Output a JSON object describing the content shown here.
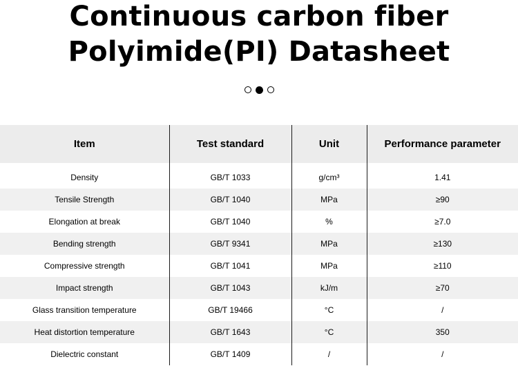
{
  "title": {
    "line1": "Continuous carbon fiber",
    "line2": "Polyimide(PI) Datasheet"
  },
  "pager": {
    "count": 3,
    "active_index": 1
  },
  "table": {
    "headers": [
      "Item",
      "Test standard",
      "Unit",
      "Performance parameter"
    ],
    "rows": [
      [
        "Density",
        "GB/T 1033",
        "g/cm³",
        "1.41"
      ],
      [
        "Tensile Strength",
        "GB/T 1040",
        "MPa",
        "≥90"
      ],
      [
        "Elongation at break",
        "GB/T 1040",
        "%",
        "≥7.0"
      ],
      [
        "Bending strength",
        "GB/T 9341",
        "MPa",
        "≥130"
      ],
      [
        "Compressive strength",
        "GB/T 1041",
        "MPa",
        "≥110"
      ],
      [
        "Impact strength",
        "GB/T 1043",
        "kJ/m",
        "≥70"
      ],
      [
        "Glass transition temperature",
        "GB/T 19466",
        "°C",
        "/"
      ],
      [
        "Heat distortion temperature",
        "GB/T 1643",
        "°C",
        "350"
      ],
      [
        "Dielectric constant",
        "GB/T 1409",
        "/",
        "/"
      ]
    ]
  },
  "colors": {
    "header_bg": "#ececec",
    "stripe_bg": "#f0f0f0",
    "divider": "#1a1a1a",
    "text": "#000000"
  }
}
